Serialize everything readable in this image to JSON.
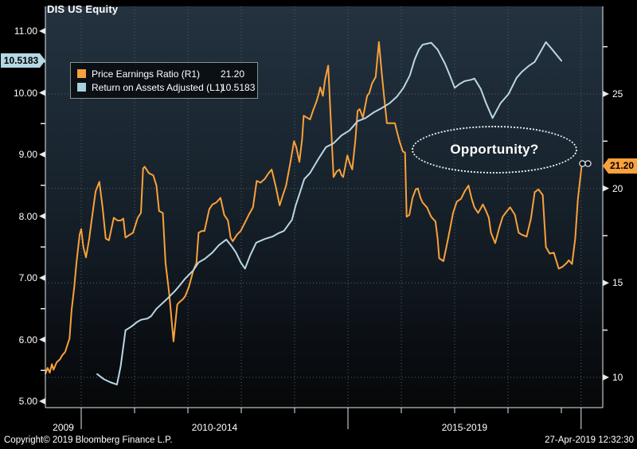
{
  "header": {
    "title": "DIS US Equity"
  },
  "legend": {
    "rows": [
      {
        "label": "Price Earnings Ratio  (R1)",
        "value": "21.20",
        "color": "#f9a13b"
      },
      {
        "label": "Return on Assets Adjusted  (L1)",
        "value": "10.5183",
        "color": "#aacfdf"
      }
    ]
  },
  "annotation": {
    "text": "Opportunity?"
  },
  "footer": {
    "copyright": "Copyright© 2019 Bloomberg Finance L.P.",
    "timestamp": "27-Apr-2019 12:32:30"
  },
  "axes": {
    "left": {
      "ticks": [
        {
          "label": "11.00",
          "value": 11
        },
        {
          "label": "10.00",
          "value": 10
        },
        {
          "label": "9.00",
          "value": 9
        },
        {
          "label": "8.00",
          "value": 8
        },
        {
          "label": "7.00",
          "value": 7
        },
        {
          "label": "6.00",
          "value": 6
        },
        {
          "label": "5.00",
          "value": 5
        }
      ],
      "minor": [
        10.5,
        9.5,
        8.5,
        7.5,
        6.5,
        5.5
      ],
      "highlight": "10.5183"
    },
    "right": {
      "ticks": [
        {
          "label": "25",
          "value": 25
        },
        {
          "label": "20",
          "value": 20
        },
        {
          "label": "15",
          "value": 15
        },
        {
          "label": "10",
          "value": 10
        }
      ],
      "minor": [
        27.5,
        22.5,
        17.5,
        12.5
      ],
      "highlight": "21.20"
    },
    "x": {
      "sections": [
        "2009",
        "2010-2014",
        "2015-2019"
      ],
      "dividers": [
        2010,
        2015,
        2019.37
      ],
      "minor_years": [
        2011,
        2012,
        2013,
        2014,
        2016,
        2017,
        2018,
        2019
      ],
      "grid_years": [
        2010,
        2011,
        2012,
        2013,
        2014,
        2015,
        2016,
        2017,
        2018,
        2019.37
      ]
    }
  },
  "chart_data": {
    "type": "line",
    "title": "DIS US Equity",
    "x_axis": {
      "unit": "decimal-year",
      "range": [
        2009.33,
        2019.78
      ]
    },
    "left_axis": {
      "label": "Return on Assets Adjusted",
      "range": [
        4.9,
        11.4
      ],
      "ticks": [
        5,
        6,
        7,
        8,
        9,
        10,
        11
      ]
    },
    "right_axis": {
      "label": "Price Earnings Ratio",
      "range": [
        8.4,
        29.6
      ],
      "ticks": [
        10,
        15,
        20,
        25
      ]
    },
    "grid": true,
    "legend_position": "top-left",
    "series": [
      {
        "name": "Price Earnings Ratio",
        "axis": "right",
        "color": "#f9a13b",
        "last_value": 21.2,
        "points": [
          [
            2009.33,
            10.2
          ],
          [
            2009.37,
            10.5
          ],
          [
            2009.41,
            10.25
          ],
          [
            2009.45,
            10.7
          ],
          [
            2009.48,
            10.4
          ],
          [
            2009.54,
            10.8
          ],
          [
            2009.6,
            10.95
          ],
          [
            2009.64,
            11.15
          ],
          [
            2009.7,
            11.35
          ],
          [
            2009.75,
            11.8
          ],
          [
            2009.78,
            12.05
          ],
          [
            2009.82,
            13.55
          ],
          [
            2009.87,
            14.8
          ],
          [
            2009.91,
            16.05
          ],
          [
            2009.97,
            17.55
          ],
          [
            2010.0,
            17.85
          ],
          [
            2010.04,
            16.9
          ],
          [
            2010.09,
            16.35
          ],
          [
            2010.15,
            17.35
          ],
          [
            2010.19,
            18.2
          ],
          [
            2010.27,
            19.85
          ],
          [
            2010.34,
            20.35
          ],
          [
            2010.4,
            19.0
          ],
          [
            2010.46,
            17.35
          ],
          [
            2010.52,
            17.25
          ],
          [
            2010.61,
            18.45
          ],
          [
            2010.68,
            18.3
          ],
          [
            2010.74,
            18.3
          ],
          [
            2010.79,
            18.4
          ],
          [
            2010.83,
            17.4
          ],
          [
            2010.91,
            17.55
          ],
          [
            2010.97,
            17.65
          ],
          [
            2011.06,
            18.45
          ],
          [
            2011.12,
            18.7
          ],
          [
            2011.16,
            21.05
          ],
          [
            2011.19,
            21.15
          ],
          [
            2011.27,
            20.8
          ],
          [
            2011.35,
            20.7
          ],
          [
            2011.41,
            20.15
          ],
          [
            2011.46,
            18.8
          ],
          [
            2011.53,
            18.7
          ],
          [
            2011.58,
            16.05
          ],
          [
            2011.65,
            14.4
          ],
          [
            2011.73,
            11.9
          ],
          [
            2011.8,
            13.85
          ],
          [
            2011.83,
            13.95
          ],
          [
            2011.91,
            14.15
          ],
          [
            2011.95,
            14.3
          ],
          [
            2012.02,
            14.8
          ],
          [
            2012.1,
            15.65
          ],
          [
            2012.16,
            16.05
          ],
          [
            2012.2,
            17.65
          ],
          [
            2012.26,
            17.75
          ],
          [
            2012.31,
            17.75
          ],
          [
            2012.4,
            18.9
          ],
          [
            2012.46,
            19.15
          ],
          [
            2012.53,
            19.25
          ],
          [
            2012.61,
            19.5
          ],
          [
            2012.68,
            18.6
          ],
          [
            2012.75,
            18.3
          ],
          [
            2012.8,
            17.4
          ],
          [
            2012.84,
            17.2
          ],
          [
            2012.92,
            17.55
          ],
          [
            2012.99,
            17.75
          ],
          [
            2013.07,
            18.2
          ],
          [
            2013.14,
            18.6
          ],
          [
            2013.22,
            19.0
          ],
          [
            2013.29,
            20.4
          ],
          [
            2013.36,
            20.3
          ],
          [
            2013.44,
            20.5
          ],
          [
            2013.51,
            20.8
          ],
          [
            2013.57,
            21.0
          ],
          [
            2013.65,
            20.05
          ],
          [
            2013.72,
            19.1
          ],
          [
            2013.78,
            19.65
          ],
          [
            2013.84,
            20.15
          ],
          [
            2013.92,
            21.35
          ],
          [
            2013.99,
            22.5
          ],
          [
            2014.03,
            22.2
          ],
          [
            2014.09,
            21.4
          ],
          [
            2014.14,
            22.6
          ],
          [
            2014.17,
            23.85
          ],
          [
            2014.23,
            23.75
          ],
          [
            2014.29,
            23.65
          ],
          [
            2014.35,
            24.15
          ],
          [
            2014.41,
            24.6
          ],
          [
            2014.45,
            25.0
          ],
          [
            2014.48,
            25.35
          ],
          [
            2014.53,
            24.9
          ],
          [
            2014.57,
            25.75
          ],
          [
            2014.63,
            26.5
          ],
          [
            2014.67,
            24.1
          ],
          [
            2014.73,
            20.6
          ],
          [
            2014.79,
            20.9
          ],
          [
            2014.84,
            21.0
          ],
          [
            2014.88,
            20.7
          ],
          [
            2014.91,
            20.6
          ],
          [
            2014.99,
            21.75
          ],
          [
            2015.03,
            21.35
          ],
          [
            2015.08,
            21.0
          ],
          [
            2015.14,
            22.6
          ],
          [
            2015.18,
            24.1
          ],
          [
            2015.22,
            24.2
          ],
          [
            2015.28,
            23.75
          ],
          [
            2015.36,
            24.9
          ],
          [
            2015.4,
            25.05
          ],
          [
            2015.45,
            25.55
          ],
          [
            2015.52,
            25.9
          ],
          [
            2015.58,
            27.75
          ],
          [
            2015.63,
            26.2
          ],
          [
            2015.67,
            25.05
          ],
          [
            2015.73,
            23.45
          ],
          [
            2015.81,
            23.45
          ],
          [
            2015.88,
            23.45
          ],
          [
            2015.92,
            23.0
          ],
          [
            2015.97,
            22.45
          ],
          [
            2016.03,
            21.95
          ],
          [
            2016.07,
            21.9
          ],
          [
            2016.1,
            18.5
          ],
          [
            2016.15,
            18.6
          ],
          [
            2016.21,
            19.5
          ],
          [
            2016.27,
            19.95
          ],
          [
            2016.31,
            20.0
          ],
          [
            2016.36,
            19.5
          ],
          [
            2016.4,
            19.25
          ],
          [
            2016.48,
            19.0
          ],
          [
            2016.56,
            18.5
          ],
          [
            2016.64,
            18.25
          ],
          [
            2016.68,
            17.35
          ],
          [
            2016.71,
            16.3
          ],
          [
            2016.79,
            16.15
          ],
          [
            2016.86,
            17.1
          ],
          [
            2016.92,
            17.95
          ],
          [
            2016.97,
            18.7
          ],
          [
            2017.04,
            19.3
          ],
          [
            2017.12,
            19.45
          ],
          [
            2017.19,
            19.85
          ],
          [
            2017.26,
            20.15
          ],
          [
            2017.32,
            19.45
          ],
          [
            2017.37,
            19.0
          ],
          [
            2017.44,
            18.7
          ],
          [
            2017.53,
            19.15
          ],
          [
            2017.59,
            18.8
          ],
          [
            2017.64,
            18.45
          ],
          [
            2017.68,
            17.65
          ],
          [
            2017.76,
            17.1
          ],
          [
            2017.83,
            17.85
          ],
          [
            2017.9,
            18.5
          ],
          [
            2017.98,
            18.8
          ],
          [
            2018.04,
            19.0
          ],
          [
            2018.13,
            18.6
          ],
          [
            2018.2,
            17.65
          ],
          [
            2018.26,
            17.55
          ],
          [
            2018.35,
            17.45
          ],
          [
            2018.43,
            18.4
          ],
          [
            2018.5,
            19.8
          ],
          [
            2018.57,
            19.95
          ],
          [
            2018.65,
            19.65
          ],
          [
            2018.71,
            16.9
          ],
          [
            2018.78,
            16.55
          ],
          [
            2018.86,
            16.6
          ],
          [
            2018.95,
            15.75
          ],
          [
            2019.02,
            15.85
          ],
          [
            2019.1,
            16.05
          ],
          [
            2019.14,
            16.2
          ],
          [
            2019.2,
            16.0
          ],
          [
            2019.26,
            17.35
          ],
          [
            2019.31,
            19.45
          ],
          [
            2019.38,
            21.2
          ]
        ]
      },
      {
        "name": "Return on Assets Adjusted",
        "axis": "left",
        "color": "#b9d6e2",
        "last_value": 10.5183,
        "points": [
          [
            2010.3,
            5.44
          ],
          [
            2010.42,
            5.36
          ],
          [
            2010.54,
            5.31
          ],
          [
            2010.67,
            5.27
          ],
          [
            2010.74,
            5.57
          ],
          [
            2010.83,
            6.15
          ],
          [
            2010.94,
            6.21
          ],
          [
            2011.04,
            6.28
          ],
          [
            2011.12,
            6.32
          ],
          [
            2011.24,
            6.34
          ],
          [
            2011.31,
            6.38
          ],
          [
            2011.41,
            6.5
          ],
          [
            2011.5,
            6.57
          ],
          [
            2011.61,
            6.66
          ],
          [
            2011.76,
            6.79
          ],
          [
            2011.85,
            6.88
          ],
          [
            2011.95,
            6.99
          ],
          [
            2012.1,
            7.12
          ],
          [
            2012.2,
            7.25
          ],
          [
            2012.32,
            7.31
          ],
          [
            2012.46,
            7.41
          ],
          [
            2012.58,
            7.53
          ],
          [
            2012.72,
            7.62
          ],
          [
            2012.83,
            7.5
          ],
          [
            2012.9,
            7.41
          ],
          [
            2012.99,
            7.25
          ],
          [
            2013.07,
            7.15
          ],
          [
            2013.17,
            7.37
          ],
          [
            2013.28,
            7.57
          ],
          [
            2013.44,
            7.63
          ],
          [
            2013.59,
            7.67
          ],
          [
            2013.69,
            7.72
          ],
          [
            2013.8,
            7.76
          ],
          [
            2013.95,
            7.94
          ],
          [
            2014.02,
            8.17
          ],
          [
            2014.11,
            8.41
          ],
          [
            2014.18,
            8.6
          ],
          [
            2014.29,
            8.7
          ],
          [
            2014.44,
            8.92
          ],
          [
            2014.59,
            9.12
          ],
          [
            2014.73,
            9.18
          ],
          [
            2014.88,
            9.31
          ],
          [
            2015.03,
            9.39
          ],
          [
            2015.18,
            9.54
          ],
          [
            2015.33,
            9.59
          ],
          [
            2015.48,
            9.68
          ],
          [
            2015.63,
            9.75
          ],
          [
            2015.78,
            9.83
          ],
          [
            2015.92,
            9.94
          ],
          [
            2016.04,
            10.08
          ],
          [
            2016.16,
            10.28
          ],
          [
            2016.25,
            10.54
          ],
          [
            2016.33,
            10.7
          ],
          [
            2016.4,
            10.78
          ],
          [
            2016.56,
            10.81
          ],
          [
            2016.68,
            10.7
          ],
          [
            2016.82,
            10.47
          ],
          [
            2016.91,
            10.28
          ],
          [
            2017.0,
            10.08
          ],
          [
            2017.09,
            10.14
          ],
          [
            2017.19,
            10.19
          ],
          [
            2017.31,
            10.21
          ],
          [
            2017.37,
            10.23
          ],
          [
            2017.49,
            10.06
          ],
          [
            2017.59,
            9.83
          ],
          [
            2017.71,
            9.59
          ],
          [
            2017.86,
            9.83
          ],
          [
            2018.01,
            9.98
          ],
          [
            2018.16,
            10.24
          ],
          [
            2018.26,
            10.34
          ],
          [
            2018.38,
            10.43
          ],
          [
            2018.5,
            10.5
          ],
          [
            2018.6,
            10.65
          ],
          [
            2018.71,
            10.82
          ],
          [
            2018.83,
            10.7
          ],
          [
            2019.0,
            10.5183
          ]
        ]
      }
    ],
    "annotations": [
      {
        "type": "ellipse-callout",
        "text": "Opportunity?"
      }
    ]
  }
}
